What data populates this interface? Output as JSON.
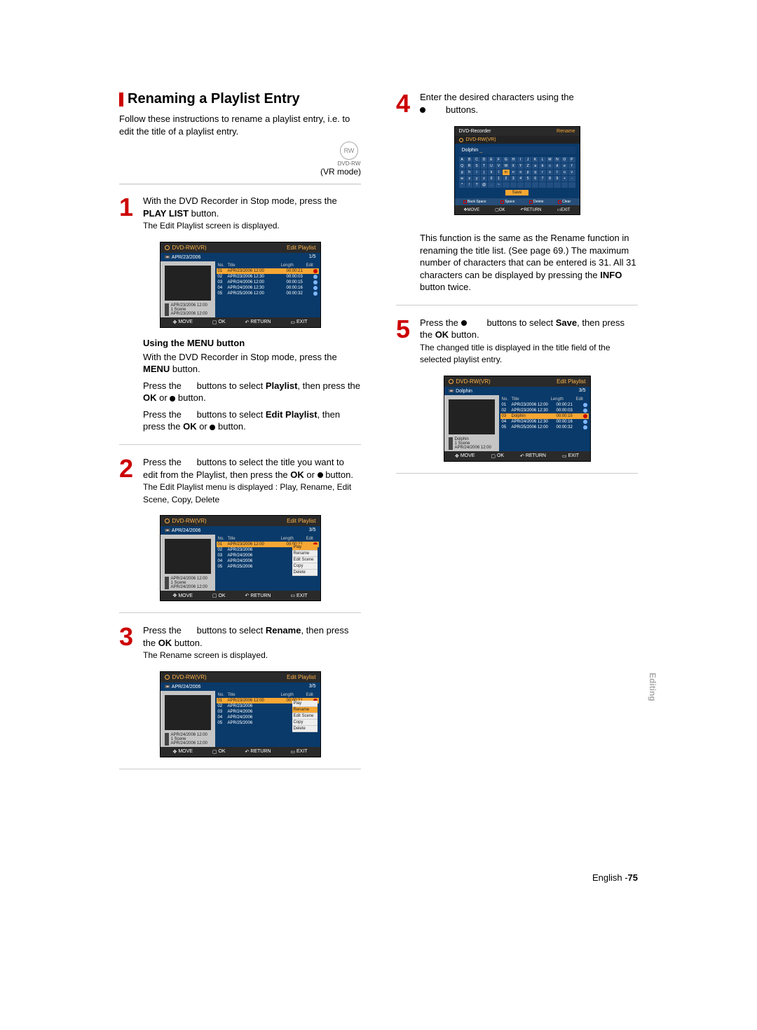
{
  "section": {
    "title": "Renaming a Playlist Entry",
    "intro": "Follow these instructions to rename a playlist entry, i.e. to edit the title of a playlist entry.",
    "dvdrw_label": "DVD-RW",
    "vr_mode": "(VR mode)"
  },
  "step1": {
    "main": "With the DVD Recorder in Stop mode, press the PLAY LIST button.",
    "sub": "The Edit Playlist screen is displayed."
  },
  "menu_section": {
    "heading": "Using the MENU button",
    "l1": "With the DVD Recorder in Stop mode, press the MENU button.",
    "l2a": "Press the",
    "l2b": "buttons to select Playlist, then press the OK or",
    "l2c": "button.",
    "l3a": "Press the",
    "l3b": "buttons to select Edit Playlist, then press the OK or",
    "l3c": "button."
  },
  "step2": {
    "main_a": "Press the",
    "main_b": "buttons to select the title you want to edit from the Playlist, then press the OK or",
    "main_c": "button.",
    "sub": "The Edit Playlist menu is displayed : Play, Rename, Edit Scene, Copy, Delete"
  },
  "step3": {
    "main_a": "Press the",
    "main_b": "buttons to select Rename, then press the OK button.",
    "sub": "The Rename screen is displayed."
  },
  "step4": {
    "main_a": "Enter the desired characters using the",
    "main_b": "buttons.",
    "note": "This function is the same as the Rename function in renaming the title list. (See page 69.) The maximum number of characters that can be entered is 31. All 31 characters can be displayed by pressing the INFO button twice."
  },
  "step5": {
    "main_a": "Press the",
    "main_b": "buttons to select Save, then press the OK button.",
    "sub": "The changed title is displayed in the title field of the selected playlist entry."
  },
  "shot_common": {
    "device": "DVD-RW(VR)",
    "edit_label": "Edit Playlist",
    "cols": {
      "no": "No.",
      "title": "Title",
      "length": "Length",
      "edit": "Edit"
    },
    "bottom": {
      "move": "MOVE",
      "ok": "OK",
      "return": "RETURN",
      "exit": "EXIT"
    }
  },
  "shot1": {
    "np_title": "APR/23/2006",
    "counter": "1/5",
    "info": [
      "APR/23/2006 12:00",
      "1 Scene",
      "APR/23/2006 12:00"
    ],
    "rows": [
      {
        "no": "01",
        "title": "APR/23/2006",
        "time": "12:00",
        "len": "00:00:21",
        "sel": true
      },
      {
        "no": "02",
        "title": "APR/23/2006",
        "time": "12:30",
        "len": "00:00:03",
        "sel": false
      },
      {
        "no": "03",
        "title": "APR/24/2006",
        "time": "12:00",
        "len": "00:00:15",
        "sel": false
      },
      {
        "no": "04",
        "title": "APR/24/2006",
        "time": "12:30",
        "len": "00:00:16",
        "sel": false
      },
      {
        "no": "05",
        "title": "APR/25/2006",
        "time": "12:00",
        "len": "00:00:32",
        "sel": false
      }
    ]
  },
  "shot2": {
    "np_title": "APR/24/2006",
    "counter": "3/5",
    "info": [
      "APR/24/2006 12:00",
      "1 Scene",
      "APR/24/2006 12:00"
    ],
    "ctx": [
      "Play",
      "Rename",
      "Edit Scene",
      "Copy",
      "Delete"
    ],
    "ctx_sel": 0,
    "rows_short": [
      {
        "no": "01",
        "title": "APR/23/2006",
        "time": "12:00",
        "len": "00:00:21"
      },
      {
        "no": "02",
        "title": "APR/23/2006"
      },
      {
        "no": "03",
        "title": "APR/24/2006"
      },
      {
        "no": "04",
        "title": "APR/24/2006"
      },
      {
        "no": "05",
        "title": "APR/25/2006"
      }
    ]
  },
  "shot3": {
    "np_title": "APR/24/2006",
    "counter": "3/5",
    "info": [
      "APR/24/2006 12:00",
      "1 Scene",
      "APR/24/2006 12:00"
    ],
    "ctx": [
      "Play",
      "Rename",
      "Edit Scene",
      "Copy",
      "Delete"
    ],
    "ctx_sel": 1
  },
  "kb": {
    "header_l": "DVD-Recorder",
    "header_r": "Rename",
    "device": "DVD-RW(VR)",
    "field": "Dolphin",
    "rows": [
      [
        "A",
        "B",
        "C",
        "D",
        "E",
        "F",
        "G",
        "H",
        "I",
        "J",
        "K",
        "L",
        "M",
        "N",
        "O",
        "P"
      ],
      [
        "Q",
        "R",
        "S",
        "T",
        "U",
        "V",
        "W",
        "X",
        "Y",
        "Z",
        "a",
        "b",
        "c",
        "d",
        "e",
        "f"
      ],
      [
        "g",
        "h",
        "i",
        "j",
        "k",
        "l",
        "m",
        "n",
        "o",
        "p",
        "q",
        "r",
        "s",
        "t",
        "u",
        "v"
      ],
      [
        "w",
        "x",
        "y",
        "z",
        "0",
        "1",
        "2",
        "3",
        "4",
        "5",
        "6",
        "7",
        "8",
        "9",
        "+",
        "-"
      ],
      [
        "*",
        "!",
        "?",
        "@",
        ".",
        "~",
        " ",
        " ",
        " ",
        " ",
        " ",
        " ",
        " ",
        " ",
        " ",
        " "
      ]
    ],
    "sel_row": 2,
    "sel_col": 6,
    "save": "Save",
    "legend": [
      "Back Space",
      "Space",
      "Delete",
      "Clear"
    ]
  },
  "shot5": {
    "np_title": "Dolphin",
    "counter": "3/5",
    "info": [
      "Dolphin",
      "1 Scene",
      "APR/24/2006 12:00"
    ],
    "rows": [
      {
        "no": "01",
        "title": "APR/23/2006",
        "time": "12:00",
        "len": "00:00:21",
        "sel": false
      },
      {
        "no": "02",
        "title": "APR/23/2006",
        "time": "12:30",
        "len": "00:00:03",
        "sel": false
      },
      {
        "no": "03",
        "title": "Dolphin",
        "time": "",
        "len": "00:00:15",
        "sel": true
      },
      {
        "no": "04",
        "title": "APR/24/2006",
        "time": "12:30",
        "len": "00:00:16",
        "sel": false
      },
      {
        "no": "05",
        "title": "APR/25/2006",
        "time": "12:00",
        "len": "00:00:32",
        "sel": false
      }
    ]
  },
  "side_tab": "Editing",
  "footer": {
    "lang": "English -",
    "page": "75"
  },
  "colors": {
    "accent": "#c00000",
    "panel_blue": "#0a3a6a",
    "highlight": "#f7a733"
  }
}
